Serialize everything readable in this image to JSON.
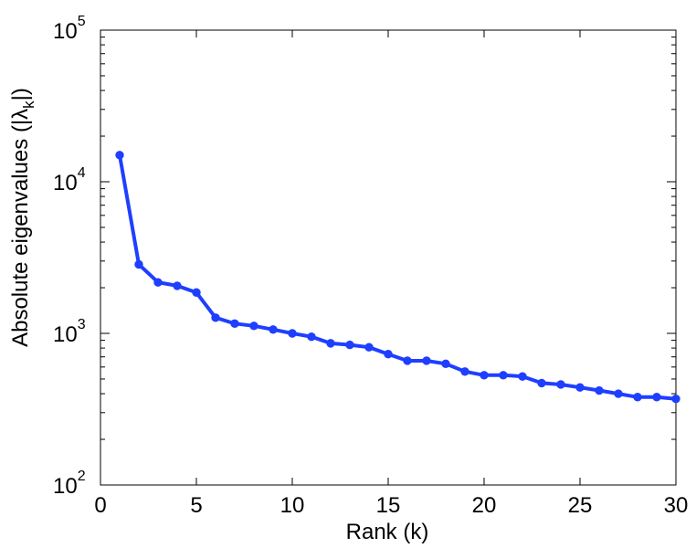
{
  "chart_data": {
    "type": "line",
    "xlabel": "Rank (k)",
    "ylabel": {
      "prefix": "Absolute eigenvalues (|λ",
      "subscript": "k",
      "suffix": "|)"
    },
    "xlim": [
      0,
      30
    ],
    "ylim": [
      100,
      100000
    ],
    "yscale": "log",
    "xticks": [
      0,
      5,
      10,
      15,
      20,
      25,
      30
    ],
    "yticks": [
      {
        "value": 100,
        "base": "10",
        "exp": "2"
      },
      {
        "value": 1000,
        "base": "10",
        "exp": "3"
      },
      {
        "value": 10000,
        "base": "10",
        "exp": "4"
      },
      {
        "value": 100000,
        "base": "10",
        "exp": "5"
      }
    ],
    "grid": false,
    "series": [
      {
        "color": "#1f3fff",
        "marker": "circle",
        "x": [
          1,
          2,
          3,
          4,
          5,
          6,
          7,
          8,
          9,
          10,
          11,
          12,
          13,
          14,
          15,
          16,
          17,
          18,
          19,
          20,
          21,
          22,
          23,
          24,
          25,
          26,
          27,
          28,
          29,
          30
        ],
        "y": [
          15000,
          2850,
          2170,
          2060,
          1860,
          1270,
          1160,
          1120,
          1060,
          1000,
          950,
          860,
          840,
          810,
          730,
          660,
          660,
          630,
          560,
          530,
          530,
          520,
          470,
          460,
          440,
          420,
          400,
          380,
          380,
          370
        ]
      }
    ]
  }
}
